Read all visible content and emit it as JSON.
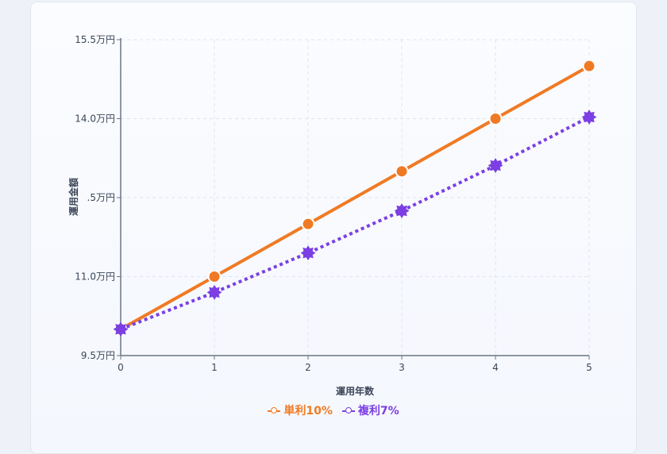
{
  "chart_data": {
    "type": "line",
    "xlabel": "運用年数",
    "ylabel": "運用金額",
    "x": [
      0,
      1,
      2,
      3,
      4,
      5
    ],
    "ylim": [
      9.5,
      15.5
    ],
    "yticks": [
      "9.5万円",
      "11.0万円",
      "",
      "14.0万円",
      "15.5万円"
    ],
    "ytick_values": [
      9.5,
      11.0,
      12.5,
      14.0,
      15.5
    ],
    "ytick_partial": ".5万円",
    "series": [
      {
        "name": "単利10%",
        "values": [
          10.0,
          11.0,
          12.0,
          13.0,
          14.0,
          15.0
        ],
        "color": "#f07a24",
        "style": "solid",
        "marker": "circle"
      },
      {
        "name": "複利7%",
        "values": [
          10.0,
          10.7,
          11.45,
          12.25,
          13.11,
          14.03
        ],
        "color": "#7b3fe4",
        "style": "dotted",
        "marker": "star"
      }
    ],
    "grid": true,
    "legend_position": "bottom"
  }
}
